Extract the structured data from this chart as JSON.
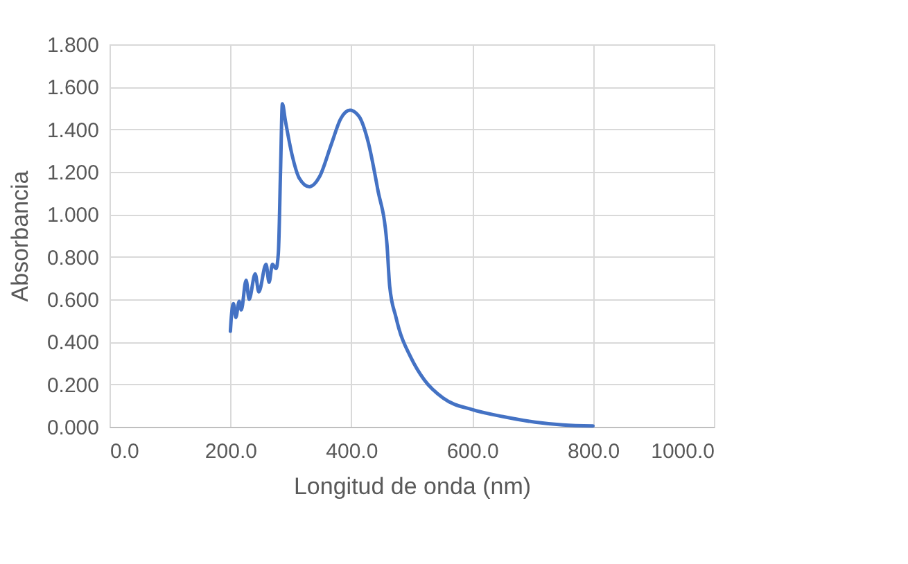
{
  "chart_data": {
    "type": "line",
    "xlabel": "Longitud de onda (nm)",
    "ylabel": "Absorbancia",
    "x": [
      200,
      201.5,
      205,
      209,
      214.5,
      218,
      226,
      231,
      241,
      247,
      259,
      264,
      269.5,
      275.6,
      279.4,
      283,
      286,
      291,
      302,
      314,
      330.6,
      348,
      367,
      382.5,
      398,
      413,
      428,
      443.6,
      459,
      463.6,
      474,
      479,
      498,
      521,
      552,
      601,
      651,
      704,
      750,
      800
    ],
    "series": [
      {
        "color": "#4472c4",
        "values": [
          0.45,
          0.515,
          0.58,
          0.515,
          0.59,
          0.55,
          0.69,
          0.6,
          0.72,
          0.635,
          0.765,
          0.68,
          0.765,
          0.745,
          0.82,
          1.21,
          1.52,
          1.44,
          1.28,
          1.17,
          1.13,
          1.18,
          1.33,
          1.45,
          1.49,
          1.46,
          1.34,
          1.12,
          0.86,
          0.66,
          0.515,
          0.46,
          0.33,
          0.22,
          0.135,
          0.08,
          0.048,
          0.022,
          0.009,
          0.004
        ]
      }
    ],
    "xlim": [
      0,
      1000
    ],
    "xticks": [
      {
        "value": 0,
        "label": "0.0"
      },
      {
        "value": 200,
        "label": "200.0"
      },
      {
        "value": 400,
        "label": "400.0"
      },
      {
        "value": 600,
        "label": "600.0"
      },
      {
        "value": 800,
        "label": "800.0"
      },
      {
        "value": 1000,
        "label": "1000.0"
      }
    ],
    "ylim": [
      0,
      1.8
    ],
    "yticks": [
      {
        "value": 0,
        "label": "0.000"
      },
      {
        "value": 0.2,
        "label": "0.200"
      },
      {
        "value": 0.4,
        "label": "0.400"
      },
      {
        "value": 0.6,
        "label": "0.600"
      },
      {
        "value": 0.8,
        "label": "0.800"
      },
      {
        "value": 1.0,
        "label": "1.000"
      },
      {
        "value": 1.2,
        "label": "1.200"
      },
      {
        "value": 1.4,
        "label": "1.400"
      },
      {
        "value": 1.6,
        "label": "1.600"
      },
      {
        "value": 1.8,
        "label": "1.800"
      }
    ],
    "grid": true,
    "marker": "none",
    "line_style": "solid"
  }
}
